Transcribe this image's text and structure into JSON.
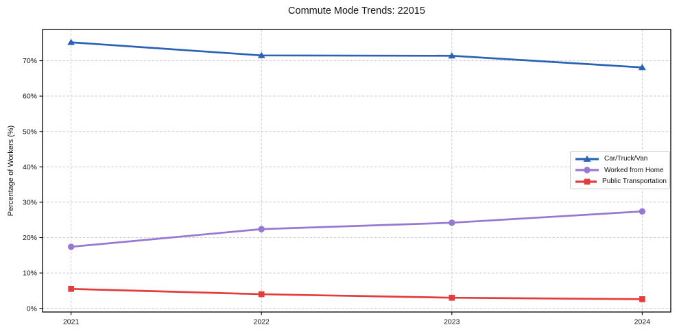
{
  "chart_data": {
    "type": "line",
    "title": "Commute Mode Trends: 22015",
    "xlabel": "",
    "ylabel": "Percentage of Workers (%)",
    "categories": [
      "2021",
      "2022",
      "2023",
      "2024"
    ],
    "series": [
      {
        "name": "Car/Truck/Van",
        "marker": "triangle-up",
        "color": "#2a62b5",
        "values": [
          75.2,
          71.5,
          71.4,
          68.1
        ]
      },
      {
        "name": "Worked from Home",
        "marker": "circle",
        "color": "#9678d2",
        "values": [
          17.4,
          22.4,
          24.2,
          27.4
        ]
      },
      {
        "name": "Public Transportation",
        "marker": "square",
        "color": "#e23c3c",
        "values": [
          5.5,
          4.0,
          3.0,
          2.6
        ]
      }
    ],
    "yticks": [
      "0%",
      "10%",
      "20%",
      "30%",
      "40%",
      "50%",
      "60%",
      "70%"
    ],
    "ytick_values": [
      0,
      10,
      20,
      30,
      40,
      50,
      60,
      70
    ],
    "ylim": [
      -1.03,
      78.83
    ],
    "xlim": [
      2020.85,
      2024.15
    ],
    "grid": true,
    "grid_style": "dashed",
    "legend_position": "center-right",
    "colors": {
      "background": "#ffffff",
      "grid": "#cccccc",
      "spine": "#000000",
      "text": "#111111"
    }
  }
}
